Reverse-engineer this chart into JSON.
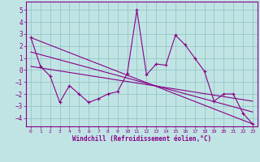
{
  "xlabel": "Windchill (Refroidissement éolien,°C)",
  "xlim": [
    -0.5,
    23.5
  ],
  "ylim": [
    -4.7,
    5.7
  ],
  "yticks": [
    -4,
    -3,
    -2,
    -1,
    0,
    1,
    2,
    3,
    4,
    5
  ],
  "xticks": [
    0,
    1,
    2,
    3,
    4,
    5,
    6,
    7,
    8,
    9,
    10,
    11,
    12,
    13,
    14,
    15,
    16,
    17,
    18,
    19,
    20,
    21,
    22,
    23
  ],
  "bg_color": "#c0e4e4",
  "grid_color": "#90c0c0",
  "line_color": "#880088",
  "line1_x": [
    0,
    1,
    2,
    3,
    4,
    5,
    6,
    7,
    8,
    9,
    10,
    11,
    12,
    13,
    14,
    15,
    16,
    17,
    18,
    19,
    20,
    21,
    22,
    23
  ],
  "line1_y": [
    2.7,
    0.3,
    -0.5,
    -2.7,
    -1.3,
    -2.0,
    -2.7,
    -2.4,
    -2.0,
    -1.8,
    -0.3,
    5.0,
    -0.4,
    0.5,
    0.4,
    2.9,
    2.1,
    1.0,
    -0.1,
    -2.6,
    -2.0,
    -2.0,
    -3.6,
    -4.5
  ],
  "line2_x": [
    0,
    23
  ],
  "line2_y": [
    2.7,
    -4.5
  ],
  "line3_x": [
    0,
    23
  ],
  "line3_y": [
    1.5,
    -3.5
  ],
  "line4_x": [
    0,
    23
  ],
  "line4_y": [
    0.3,
    -2.6
  ]
}
